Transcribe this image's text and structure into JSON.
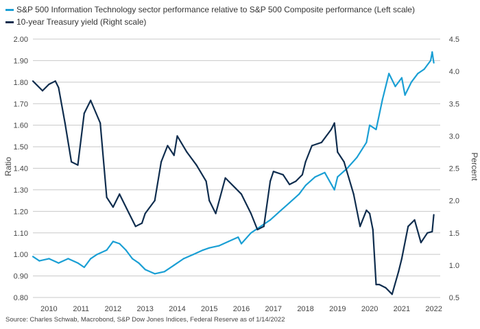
{
  "legend": {
    "items": [
      {
        "label": "S&P 500 Information Technology sector performance relative to S&P 500 Composite performance  (Left scale)",
        "color": "#1a9fd4"
      },
      {
        "label": "10-year Treasury yield (Right scale)",
        "color": "#0f2d4e"
      }
    ]
  },
  "source": "Source: Charles Schwab, Macrobond, S&P Dow Jones Indices, Federal Reserve as of 1/14/2022",
  "chart_data": {
    "type": "line",
    "ylabel": "Ratio",
    "ylabel_right": "Percent",
    "ylim": [
      0.8,
      2.0
    ],
    "ylim_right": [
      0.5,
      4.5
    ],
    "xlim": [
      2009.5,
      2022.2
    ],
    "grid": true,
    "yticks": [
      "2.00",
      "1.90",
      "1.80",
      "1.70",
      "1.60",
      "1.50",
      "1.40",
      "1.30",
      "1.20",
      "1.10",
      "1.00",
      "0.90",
      "0.80"
    ],
    "yticks_right": [
      "4.5",
      "4.0",
      "3.5",
      "3.0",
      "2.5",
      "2.0",
      "1.5",
      "1.0",
      "0.5"
    ],
    "xticks": [
      "2010",
      "2011",
      "2012",
      "2013",
      "2014",
      "2015",
      "2016",
      "2017",
      "2018",
      "2019",
      "2020",
      "2021",
      "2022"
    ],
    "series": [
      {
        "name": "S&P 500 Information Technology sector performance relative to S&P 500 Composite performance  (Left scale)",
        "axis": "left",
        "color": "#1a9fd4",
        "x": [
          2009.5,
          2009.7,
          2010.0,
          2010.3,
          2010.6,
          2010.9,
          2011.1,
          2011.3,
          2011.5,
          2011.8,
          2012.0,
          2012.2,
          2012.4,
          2012.6,
          2012.8,
          2013.0,
          2013.3,
          2013.6,
          2013.9,
          2014.2,
          2014.5,
          2014.8,
          2015.0,
          2015.3,
          2015.6,
          2015.9,
          2016.0,
          2016.3,
          2016.6,
          2016.9,
          2017.2,
          2017.5,
          2017.8,
          2018.0,
          2018.3,
          2018.6,
          2018.9,
          2019.0,
          2019.3,
          2019.6,
          2019.9,
          2020.0,
          2020.2,
          2020.4,
          2020.6,
          2020.8,
          2021.0,
          2021.1,
          2021.3,
          2021.5,
          2021.7,
          2021.9,
          2021.95,
          2022.0
        ],
        "y": [
          0.99,
          0.97,
          0.98,
          0.96,
          0.98,
          0.96,
          0.94,
          0.98,
          1.0,
          1.02,
          1.06,
          1.05,
          1.02,
          0.98,
          0.96,
          0.93,
          0.91,
          0.92,
          0.95,
          0.98,
          1.0,
          1.02,
          1.03,
          1.04,
          1.06,
          1.08,
          1.05,
          1.1,
          1.13,
          1.16,
          1.2,
          1.24,
          1.28,
          1.32,
          1.36,
          1.38,
          1.3,
          1.36,
          1.4,
          1.45,
          1.52,
          1.6,
          1.58,
          1.72,
          1.84,
          1.78,
          1.82,
          1.74,
          1.8,
          1.84,
          1.86,
          1.9,
          1.94,
          1.89
        ]
      },
      {
        "name": "10-year Treasury yield (Right scale)",
        "axis": "right",
        "color": "#0f2d4e",
        "x": [
          2009.5,
          2009.8,
          2010.0,
          2010.2,
          2010.3,
          2010.5,
          2010.7,
          2010.9,
          2011.1,
          2011.3,
          2011.6,
          2011.8,
          2012.0,
          2012.2,
          2012.5,
          2012.7,
          2012.9,
          2013.0,
          2013.3,
          2013.5,
          2013.7,
          2013.9,
          2014.0,
          2014.3,
          2014.6,
          2014.9,
          2015.0,
          2015.2,
          2015.5,
          2015.8,
          2016.0,
          2016.3,
          2016.5,
          2016.7,
          2016.9,
          2017.0,
          2017.3,
          2017.5,
          2017.7,
          2017.9,
          2018.0,
          2018.2,
          2018.5,
          2018.8,
          2018.9,
          2019.0,
          2019.2,
          2019.5,
          2019.7,
          2019.9,
          2020.0,
          2020.1,
          2020.2,
          2020.3,
          2020.5,
          2020.7,
          2020.9,
          2021.0,
          2021.2,
          2021.4,
          2021.6,
          2021.8,
          2021.95,
          2022.0
        ],
        "y": [
          3.85,
          3.7,
          3.8,
          3.85,
          3.75,
          3.2,
          2.6,
          2.55,
          3.35,
          3.55,
          3.2,
          2.05,
          1.9,
          2.1,
          1.8,
          1.6,
          1.65,
          1.8,
          2.0,
          2.6,
          2.85,
          2.7,
          3.0,
          2.75,
          2.55,
          2.3,
          2.0,
          1.8,
          2.35,
          2.2,
          2.1,
          1.8,
          1.55,
          1.6,
          2.3,
          2.45,
          2.4,
          2.25,
          2.3,
          2.4,
          2.6,
          2.85,
          2.9,
          3.1,
          3.2,
          2.75,
          2.6,
          2.1,
          1.6,
          1.85,
          1.8,
          1.55,
          0.7,
          0.7,
          0.65,
          0.55,
          0.9,
          1.1,
          1.6,
          1.7,
          1.35,
          1.5,
          1.52,
          1.78
        ]
      }
    ]
  }
}
